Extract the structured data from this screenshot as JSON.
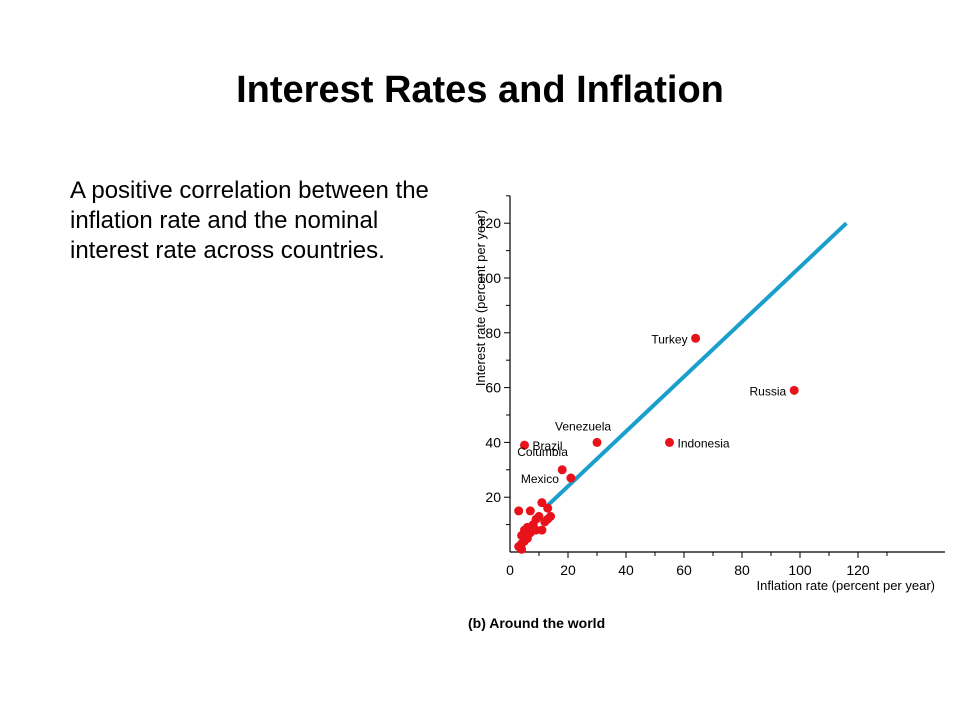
{
  "slide": {
    "title": "Interest Rates and Inflation",
    "body": "A positive correlation between the inflation rate and the nominal interest rate across countries."
  },
  "chart_data": {
    "type": "scatter",
    "caption": "(b) Around the world",
    "xlabel": "Inflation rate (percent per year)",
    "ylabel": "Interest rate (percent per year)",
    "xlim": [
      0,
      150
    ],
    "ylim": [
      0,
      130
    ],
    "xticks": [
      0,
      20,
      40,
      60,
      80,
      100,
      120
    ],
    "yticks": [
      20,
      40,
      60,
      80,
      100,
      120
    ],
    "colors": {
      "points": "#e8121b",
      "line": "#1a9fcc",
      "axis": "#000000"
    },
    "trend_line": {
      "x": [
        12,
        116
      ],
      "y": [
        16,
        120
      ]
    },
    "labeled_points": [
      {
        "label": "Turkey",
        "x": 64,
        "y": 78,
        "label_side": "left"
      },
      {
        "label": "Russia",
        "x": 98,
        "y": 59,
        "label_side": "left"
      },
      {
        "label": "Indonesia",
        "x": 55,
        "y": 40,
        "label_side": "right"
      },
      {
        "label": "Venezuela",
        "x": 30,
        "y": 40,
        "label_side": "above"
      },
      {
        "label": "Brazil",
        "x": 5,
        "y": 39,
        "label_side": "right"
      },
      {
        "label": "Columbia",
        "x": 18,
        "y": 30,
        "label_side": "above-left"
      },
      {
        "label": "Mexico",
        "x": 21,
        "y": 27,
        "label_side": "below-left"
      }
    ],
    "points": [
      {
        "x": 3,
        "y": 15
      },
      {
        "x": 7,
        "y": 15
      },
      {
        "x": 11,
        "y": 18
      },
      {
        "x": 13,
        "y": 16
      },
      {
        "x": 10,
        "y": 13
      },
      {
        "x": 12,
        "y": 11
      },
      {
        "x": 14,
        "y": 13
      },
      {
        "x": 8,
        "y": 10
      },
      {
        "x": 6,
        "y": 9
      },
      {
        "x": 5,
        "y": 8
      },
      {
        "x": 7,
        "y": 7
      },
      {
        "x": 9,
        "y": 8
      },
      {
        "x": 11,
        "y": 8
      },
      {
        "x": 4,
        "y": 6
      },
      {
        "x": 6,
        "y": 5
      },
      {
        "x": 5,
        "y": 4
      },
      {
        "x": 4,
        "y": 3
      },
      {
        "x": 3,
        "y": 2
      },
      {
        "x": 4,
        "y": 1
      },
      {
        "x": 9,
        "y": 12
      },
      {
        "x": 13,
        "y": 12
      }
    ]
  }
}
